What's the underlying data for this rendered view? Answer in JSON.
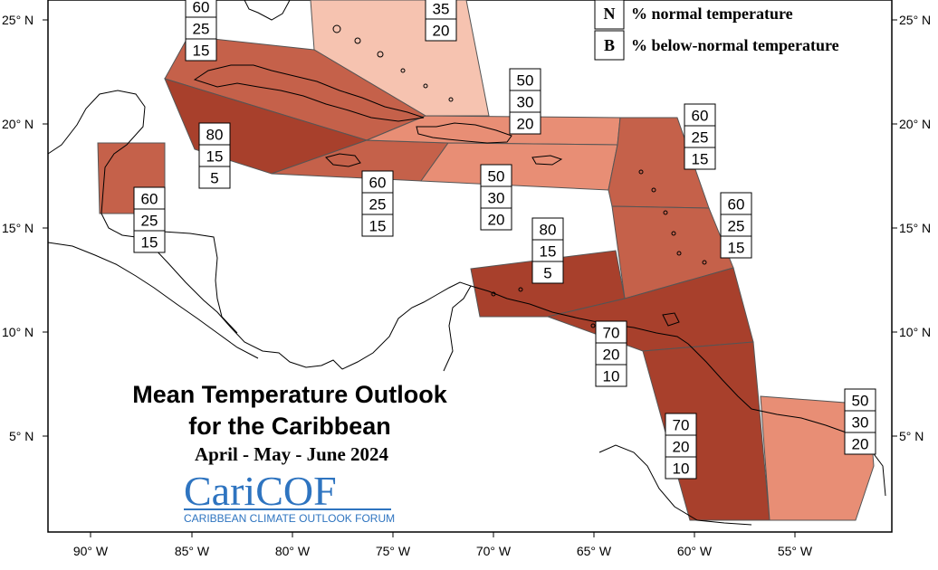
{
  "title": {
    "line1": "Mean Temperature Outlook",
    "line2": "for the Caribbean",
    "period": "April - May - June 2024"
  },
  "logo": {
    "name": "CariCOF",
    "tagline": "CARIBBEAN CLIMATE OUTLOOK FORUM"
  },
  "legend": [
    {
      "key": "N",
      "text": "% normal temperature"
    },
    {
      "key": "B",
      "text": "% below-normal temperature"
    }
  ],
  "axes": {
    "x_ticks": [
      "90° W",
      "85° W",
      "80° W",
      "75° W",
      "70° W",
      "65° W",
      "60° W",
      "55° W"
    ],
    "y_ticks_left": [
      "25° N",
      "20° N",
      "15° N",
      "10° N",
      "5° N"
    ],
    "y_ticks_right": [
      "25° N",
      "20° N",
      "15° N",
      "10° N",
      "5° N"
    ]
  },
  "colors": {
    "prob_80": "#a8402c",
    "prob_70": "#a8402c",
    "prob_60": "#c5614a",
    "prob_50": "#e88e75",
    "prob_35": "#f6c3b0"
  },
  "regions": [
    {
      "id": "bahamas",
      "values": [
        "35",
        "20"
      ],
      "color": "#f6c3b0"
    },
    {
      "id": "cuba-west",
      "values": [
        "60",
        "25",
        "15"
      ],
      "color": "#c5614a"
    },
    {
      "id": "cuba-central",
      "values": [
        "80",
        "15",
        "5"
      ],
      "color": "#a8402c"
    },
    {
      "id": "belize",
      "values": [
        "60",
        "25",
        "15"
      ],
      "color": "#c5614a"
    },
    {
      "id": "jamaica",
      "values": [
        "60",
        "25",
        "15"
      ],
      "color": "#c5614a"
    },
    {
      "id": "hispaniola",
      "values": [
        "50",
        "30",
        "20"
      ],
      "color": "#e88e75"
    },
    {
      "id": "puerto-rico",
      "values": [
        "50",
        "30",
        "20"
      ],
      "color": "#e88e75"
    },
    {
      "id": "leeward-islands",
      "values": [
        "60",
        "25",
        "15"
      ],
      "color": "#c5614a"
    },
    {
      "id": "windward-islands",
      "values": [
        "60",
        "25",
        "15"
      ],
      "color": "#c5614a"
    },
    {
      "id": "abc-islands",
      "values": [
        "80",
        "15",
        "5"
      ],
      "color": "#a8402c"
    },
    {
      "id": "trinidad",
      "values": [
        "70",
        "20",
        "10"
      ],
      "color": "#a8402c"
    },
    {
      "id": "guyana",
      "values": [
        "70",
        "20",
        "10"
      ],
      "color": "#a8402c"
    },
    {
      "id": "french-guiana",
      "values": [
        "50",
        "30",
        "20"
      ],
      "color": "#e88e75"
    }
  ]
}
